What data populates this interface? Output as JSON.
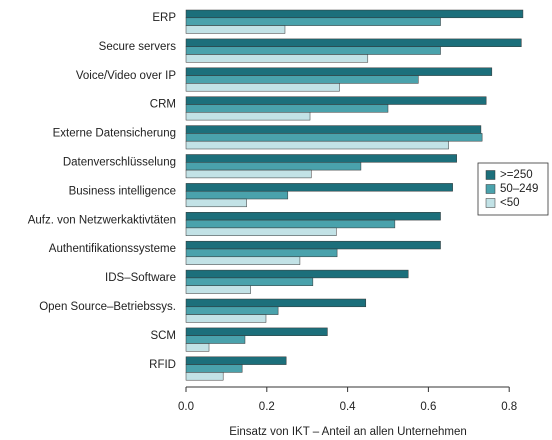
{
  "chart_data": {
    "type": "hbar",
    "x_label": "Einsatz von IKT – Anteil an allen Unternehmen",
    "categories": [
      "ERP",
      "Secure servers",
      "Voice/Video over IP",
      "CRM",
      "Externe Datensicherung",
      "Datenverschlüsselung",
      "Business intelligence",
      "Aufz. von Netzwerkaktivtäten",
      "Authentifikationssysteme",
      "IDS–Software",
      "Open Source–Betriebssys.",
      "SCM",
      "RFID"
    ],
    "series": [
      {
        "name": ">=250",
        "color": "#1c6f7b",
        "values": [
          0.834,
          0.83,
          0.757,
          0.743,
          0.73,
          0.67,
          0.66,
          0.63,
          0.63,
          0.55,
          0.445,
          0.35,
          0.248
        ]
      },
      {
        "name": "50–249",
        "color": "#4aa2ac",
        "values": [
          0.63,
          0.63,
          0.575,
          0.5,
          0.733,
          0.433,
          0.252,
          0.517,
          0.374,
          0.314,
          0.228,
          0.146,
          0.139
        ]
      },
      {
        "name": "<50",
        "color": "#c2e2e6",
        "values": [
          0.245,
          0.45,
          0.38,
          0.307,
          0.65,
          0.31,
          0.15,
          0.372,
          0.282,
          0.16,
          0.198,
          0.057,
          0.092
        ]
      }
    ],
    "xlim": [
      0,
      0.9
    ],
    "xticks": [
      {
        "value": 0,
        "label": "0.0"
      },
      0.2,
      0.4,
      0.6,
      0.8
    ],
    "legend": "right"
  }
}
